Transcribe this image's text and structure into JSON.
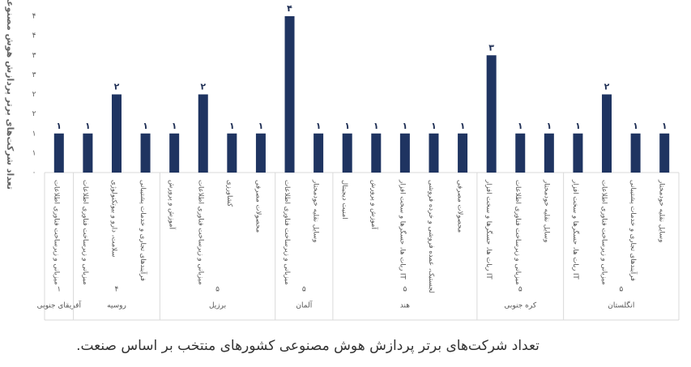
{
  "chart_data": {
    "type": "bar",
    "y_label": "تعداد شرکت‌های برتر پردازش هوش مصنوعی",
    "caption": "تعداد شرکت‌های برتر پردازش هوش مصنوعی کشورهای منتخب بر اساس صنعت.",
    "color": "#1f3461",
    "ylim": [
      0,
      4
    ],
    "yticks": [
      {
        "value": 0,
        "label": "۰"
      },
      {
        "value": 0.5,
        "label": "۱"
      },
      {
        "value": 1,
        "label": "۱"
      },
      {
        "value": 1.5,
        "label": "۲"
      },
      {
        "value": 2,
        "label": "۲"
      },
      {
        "value": 2.5,
        "label": "۳"
      },
      {
        "value": 3,
        "label": "۳"
      },
      {
        "value": 3.5,
        "label": "۴"
      },
      {
        "value": 4,
        "label": "۴"
      }
    ],
    "groups": [
      {
        "name": "آفریقای جنوبی",
        "total": {
          "value": 1,
          "label": "۱"
        },
        "categories": [
          "میزبانی و زیرساخت فناوری اطلاعات"
        ],
        "values": [
          1
        ],
        "value_labels": [
          "۱"
        ]
      },
      {
        "name": "روسیه",
        "total": {
          "value": 4,
          "label": "۴"
        },
        "categories": [
          "میزبانی و زیرساخت فناوری اطلاعات",
          "سلامت، دارو و بیوتکنولوژی",
          "فرآیندهای تجاری و خدمات پشتیبانی"
        ],
        "values": [
          1,
          2,
          1
        ],
        "value_labels": [
          "۱",
          "۲",
          "۱"
        ]
      },
      {
        "name": "برزیل",
        "total": {
          "value": 5,
          "label": "۵"
        },
        "categories": [
          "آموزش و پرورش",
          "میزبانی و زیرساخت فناوری اطلاعات",
          "کشاورزی",
          "محصولات مصرفی"
        ],
        "values": [
          1,
          2,
          1,
          1
        ],
        "value_labels": [
          "۱",
          "۲",
          "۱",
          "۱"
        ]
      },
      {
        "name": "آلمان",
        "total": {
          "value": 5,
          "label": "۵"
        },
        "categories": [
          "میزبانی و زیرساخت فناوری اطلاعات",
          "وسایل نقلیه خودمختار"
        ],
        "values": [
          4,
          1
        ],
        "value_labels": [
          "۴",
          "۱"
        ]
      },
      {
        "name": "هند",
        "total": {
          "value": 5,
          "label": "۵"
        },
        "categories": [
          "امنیت دیجیتال",
          "آموزش و پرورش",
          "ربات ها، حسگرها و سخت افزار IT",
          "لجستیک، عمده فروشی و خرده فروشی",
          "محصولات مصرفی"
        ],
        "values": [
          1,
          1,
          1,
          1,
          1
        ],
        "value_labels": [
          "۱",
          "۱",
          "۱",
          "۱",
          "۱"
        ]
      },
      {
        "name": "کره جنوبی",
        "total": {
          "value": 5,
          "label": "۵"
        },
        "categories": [
          "ربات ها، حسگرها و سخت افزار IT",
          "میزبانی و زیرساخت فناوری اطلاعات",
          "وسایل نقلیه خودمختار"
        ],
        "values": [
          3,
          1,
          1
        ],
        "value_labels": [
          "۳",
          "۱",
          "۱"
        ]
      },
      {
        "name": "انگلستان",
        "total": {
          "value": 5,
          "label": "۵"
        },
        "categories": [
          "ربات ها، حسگرها و سخت افزار IT",
          "میزبانی و زیرساخت فناوری اطلاعات",
          "فرآیندهای تجاری و خدمات پشتیبانی",
          "وسایل نقلیه خودمختار"
        ],
        "values": [
          1,
          2,
          1,
          1
        ],
        "value_labels": [
          "۱",
          "۲",
          "۱",
          "۱"
        ]
      }
    ]
  }
}
